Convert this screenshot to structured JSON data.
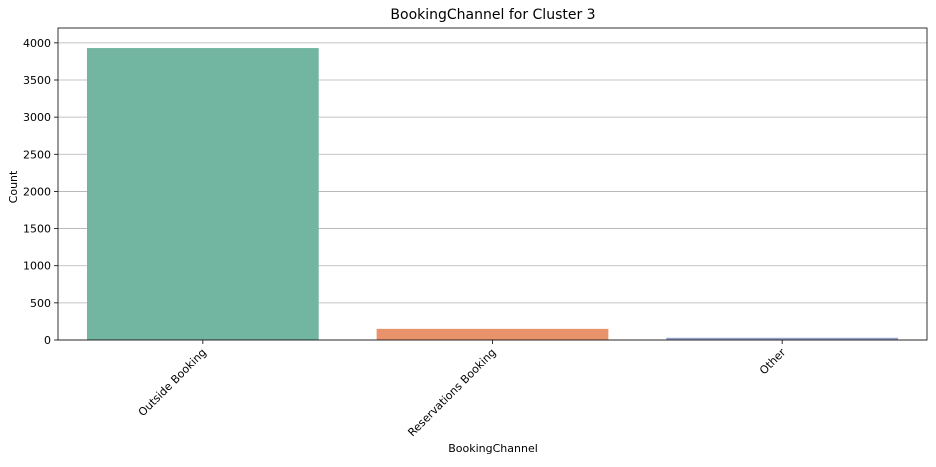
{
  "chart_data": {
    "type": "bar",
    "title": "BookingChannel for Cluster 3",
    "xlabel": "BookingChannel",
    "ylabel": "Count",
    "categories": [
      "Outside Booking",
      "Reservations Booking",
      "Other"
    ],
    "values": [
      3930,
      150,
      30
    ],
    "colors": [
      "#72b5a0",
      "#e8936b",
      "#95a1c6"
    ],
    "ylim": [
      0,
      4000
    ],
    "yticks": [
      0,
      500,
      1000,
      1500,
      2000,
      2500,
      3000,
      3500,
      4000
    ],
    "ytick_labels": [
      "0",
      "500",
      "1000",
      "1500",
      "2000",
      "2500",
      "3000",
      "3500",
      "4000"
    ],
    "grid": "y",
    "legend": "none",
    "x_tick_rotation": 45
  }
}
